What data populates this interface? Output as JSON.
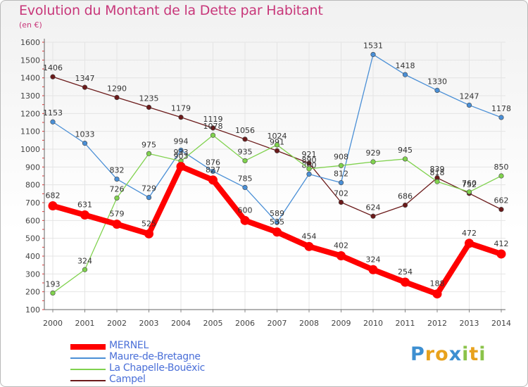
{
  "title": "Evolution du Montant de la Dette par Habitant",
  "unit": "(en €)",
  "brand": {
    "letters": [
      "P",
      "r",
      "o",
      "x",
      "i",
      "t",
      "i"
    ],
    "colors": [
      "#3d8fd1",
      "#e8a21d",
      "#e8a21d",
      "#3d8fd1",
      "#8bc34a",
      "#e8a21d",
      "#8bc34a"
    ]
  },
  "chart_data": {
    "type": "line",
    "title": "Evolution du Montant de la Dette par Habitant",
    "ylabel": "(en €)",
    "xlabel": "",
    "ylim": [
      100,
      1600
    ],
    "yticks": [
      100,
      200,
      300,
      400,
      500,
      600,
      700,
      800,
      900,
      1000,
      1100,
      1200,
      1300,
      1400,
      1500,
      1600
    ],
    "categories": [
      "2000",
      "2001",
      "2002",
      "2003",
      "2004",
      "2005",
      "2006",
      "2007",
      "2008",
      "2009",
      "2010",
      "2011",
      "2012",
      "2013",
      "2014"
    ],
    "grid": true,
    "legend_position": "bottom-left",
    "series": [
      {
        "name": "Campel",
        "color": "#6b1a1a",
        "values": [
          1406,
          1347,
          1290,
          1235,
          1179,
          1119,
          1056,
          991,
          921,
          702,
          624,
          686,
          839,
          752,
          662
        ]
      },
      {
        "name": "Maure-de-Bretagne",
        "color": "#4a8fd6",
        "values": [
          1153,
          1033,
          832,
          729,
          994,
          876,
          785,
          589,
          860,
          812,
          1531,
          1418,
          1330,
          1247,
          1178
        ]
      },
      {
        "name": "La Chapelle-Bouëxic",
        "color": "#80d24e",
        "values": [
          193,
          324,
          726,
          975,
          933,
          1078,
          935,
          1024,
          890,
          908,
          929,
          945,
          818,
          760,
          850
        ]
      },
      {
        "name": "MERNEL",
        "color": "#ff0000",
        "values": [
          682,
          631,
          579,
          525,
          903,
          827,
          600,
          535,
          454,
          402,
          324,
          254,
          188,
          472,
          412
        ]
      }
    ]
  }
}
